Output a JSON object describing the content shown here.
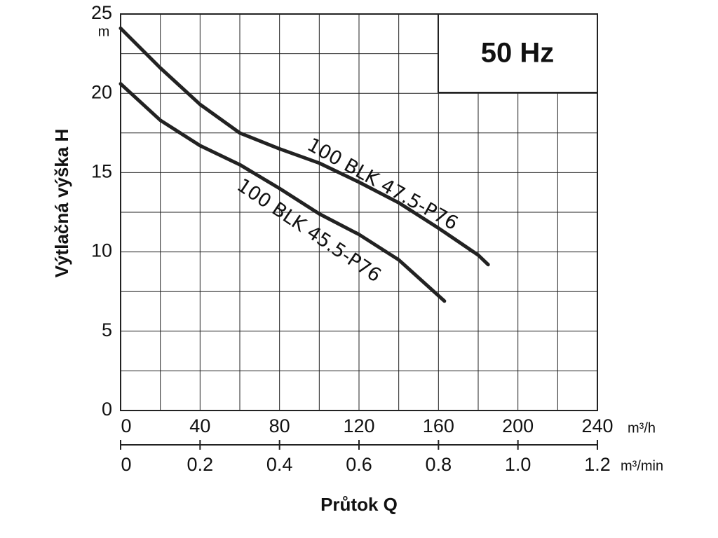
{
  "chart_data": {
    "type": "line",
    "badge": "50 Hz",
    "y_label": "Výtlačná výška H",
    "y_unit": "m",
    "x_label": "Průtok Q",
    "x_unit": "m³/h",
    "x2_unit": "m³/min",
    "xlim": [
      0,
      240
    ],
    "xticks": [
      0,
      40,
      80,
      120,
      160,
      200,
      240
    ],
    "x2lim": [
      0,
      1.2
    ],
    "x2ticks": [
      0,
      0.2,
      0.4,
      0.6,
      0.8,
      {
        "value": 1,
        "label": "1.0"
      },
      1.2
    ],
    "ylim": [
      0,
      25
    ],
    "yticks": [
      0,
      5,
      10,
      15,
      20,
      25
    ],
    "grid": true,
    "series": [
      {
        "name": "100 BLK 47.5-P76",
        "color": "#222222",
        "x": [
          0,
          20,
          40,
          60,
          80,
          100,
          120,
          140,
          160,
          180,
          185
        ],
        "values": [
          24.1,
          21.6,
          19.3,
          17.5,
          16.5,
          15.6,
          14.4,
          13.1,
          11.5,
          9.8,
          9.2
        ]
      },
      {
        "name": "100 BLK 45.5-P76",
        "color": "#222222",
        "x": [
          0,
          20,
          40,
          60,
          80,
          100,
          120,
          140,
          163
        ],
        "values": [
          20.6,
          18.3,
          16.7,
          15.5,
          14.0,
          12.4,
          11.1,
          9.5,
          6.9
        ]
      }
    ]
  }
}
